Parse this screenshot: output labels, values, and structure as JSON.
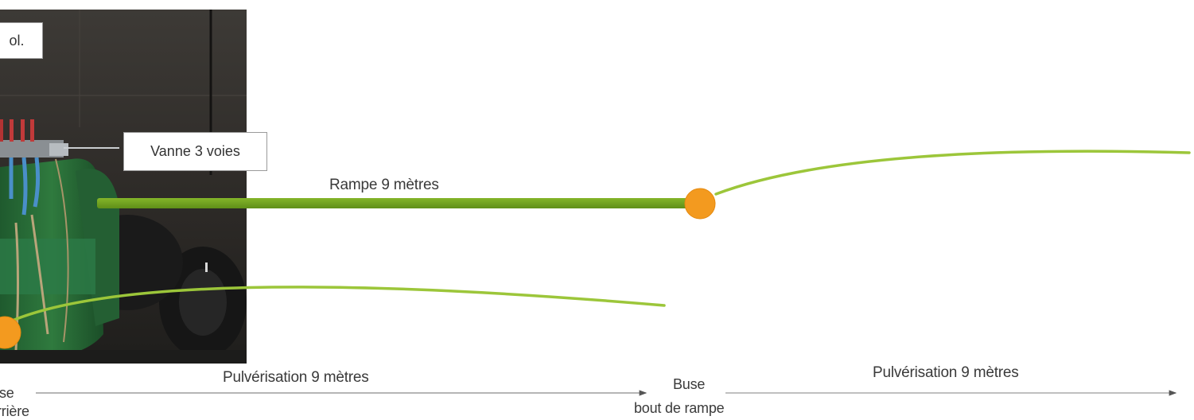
{
  "labels": {
    "photo_tag": "ol.",
    "valve": "Vanne 3 voies",
    "boom": "Rampe 9 mètres",
    "spray_left": "Pulvérisation 9 mètres",
    "spray_right": "Pulvérisation 9 mètres",
    "nozzle_rear_line1": "se",
    "nozzle_rear_line2": "rrière",
    "nozzle_end_line1": "Buse",
    "nozzle_end_line2": "bout de rampe"
  },
  "colors": {
    "boom_green": "#6e9e1e",
    "spray_arc_green": "#9cc63a",
    "nozzle_orange": "#f39a1f",
    "arrow_gray": "#777777"
  }
}
